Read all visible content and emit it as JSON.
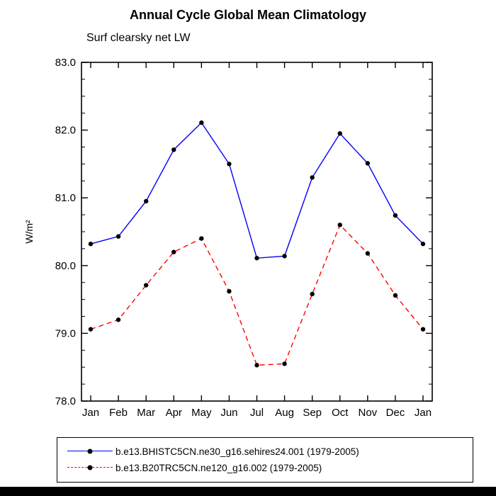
{
  "chart_data": {
    "type": "line",
    "title": "Annual Cycle Global Mean Climatology",
    "subtitle": "Surf clearsky net LW",
    "xlabel": "",
    "ylabel": "W/m²",
    "ylim": [
      78.0,
      83.0
    ],
    "yticks": [
      78.0,
      79.0,
      80.0,
      81.0,
      82.0,
      83.0
    ],
    "ytick_format_decimals": 1,
    "grid": false,
    "legend_position": "bottom",
    "marker": "filled-black-circle",
    "categories": [
      "Jan",
      "Feb",
      "Mar",
      "Apr",
      "May",
      "Jun",
      "Jul",
      "Aug",
      "Sep",
      "Oct",
      "Nov",
      "Dec",
      "Jan"
    ],
    "series": [
      {
        "id": "blue-series",
        "name": "b.e13.BHISTC5CN.ne30_g16.sehires24.001 (1979-2005)",
        "color": "#0000ff",
        "style": "solid",
        "values": [
          80.32,
          80.43,
          80.95,
          81.71,
          82.11,
          81.5,
          80.11,
          80.14,
          81.3,
          81.95,
          81.51,
          80.74,
          80.32
        ]
      },
      {
        "id": "red-series",
        "name": "b.e13.B20TRC5CN.ne120_g16.002 (1979-2005)",
        "color": "#ff0000",
        "style": "dashed",
        "values": [
          79.06,
          79.2,
          79.71,
          80.2,
          80.4,
          79.62,
          78.53,
          78.55,
          79.58,
          80.6,
          80.18,
          79.56,
          79.06
        ]
      }
    ]
  }
}
